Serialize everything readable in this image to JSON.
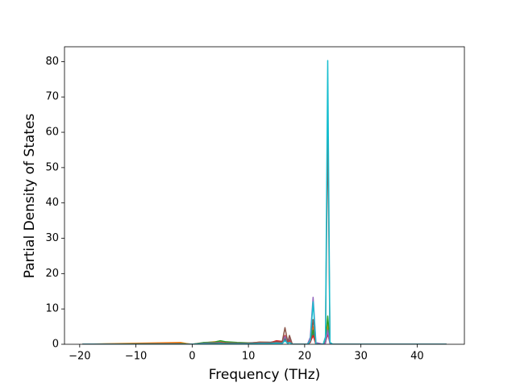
{
  "chart_data": {
    "type": "line",
    "x_label": "Frequency (THz)",
    "y_label": "Partial Density of States",
    "x": [
      -19.5,
      -2,
      -1,
      0,
      2,
      4,
      5,
      6,
      8,
      10,
      12,
      14,
      15,
      16,
      16.5,
      17,
      17.3,
      17.8,
      20.5,
      21,
      21.5,
      22,
      23.3,
      23.7,
      24.1,
      24.5,
      25,
      30,
      45.2
    ],
    "series": [
      {
        "color": "#1f77b4",
        "values": [
          0,
          0.3,
          0.1,
          0,
          0.3,
          0.5,
          0.6,
          0.4,
          0.3,
          0.4,
          0.5,
          0.6,
          0.8,
          0.5,
          1.5,
          0.4,
          0.8,
          0,
          0,
          0.5,
          3,
          0,
          0,
          0.5,
          5,
          0.3,
          0,
          0,
          0
        ]
      },
      {
        "color": "#ff7f0e",
        "values": [
          0,
          0.5,
          0.2,
          0,
          0.4,
          0.7,
          0.9,
          0.5,
          0.4,
          0.3,
          0.6,
          0.5,
          0.7,
          0.6,
          2,
          0.5,
          1,
          0,
          0,
          1,
          5,
          0,
          0,
          1,
          6,
          0.5,
          0,
          0,
          0
        ]
      },
      {
        "color": "#2ca02c",
        "values": [
          0,
          0.2,
          0.1,
          0,
          0.5,
          0.6,
          1,
          0.7,
          0.5,
          0.4,
          0.4,
          0.5,
          0.6,
          0.5,
          1.8,
          0.6,
          1.5,
          0,
          0,
          0.8,
          4,
          0,
          0,
          0.6,
          8,
          0.4,
          0,
          0,
          0
        ]
      },
      {
        "color": "#d62728",
        "values": [
          0,
          0.1,
          0,
          0,
          0.2,
          0.3,
          0.4,
          0.3,
          0.2,
          0.3,
          0.4,
          0.5,
          1,
          0.8,
          2.5,
          0.5,
          1.2,
          0,
          0,
          0.6,
          2.5,
          0,
          0,
          0.4,
          3,
          0.2,
          0,
          0,
          0
        ]
      },
      {
        "color": "#9467bd",
        "values": [
          0,
          0.1,
          0,
          0,
          0.3,
          0.4,
          0.5,
          0.3,
          0.3,
          0.2,
          0.5,
          0.4,
          0.6,
          0.4,
          2.2,
          0.5,
          2,
          0,
          0,
          2,
          13.3,
          0.5,
          0,
          0.3,
          4,
          0.2,
          0,
          0,
          0
        ]
      },
      {
        "color": "#8c564b",
        "values": [
          0,
          0.1,
          0,
          0,
          0.2,
          0.3,
          0.5,
          0.4,
          0.3,
          0.3,
          0.6,
          0.5,
          0.7,
          0.6,
          4.7,
          0.6,
          2.5,
          0,
          0,
          1,
          7,
          0,
          0,
          2,
          61.5,
          0.5,
          0,
          0,
          0
        ]
      },
      {
        "color": "#17becf",
        "values": [
          0,
          0,
          0,
          0,
          0.1,
          0.1,
          0.2,
          0.1,
          0.1,
          0.1,
          0.2,
          0.2,
          0.3,
          0.2,
          1,
          0.2,
          0.5,
          0,
          0,
          1,
          12,
          0,
          0,
          2,
          80.3,
          0.5,
          0,
          0,
          0
        ]
      }
    ],
    "xlim": [
      -22.7,
      48.4
    ],
    "ylim": [
      0,
      84.2
    ],
    "xticks": [
      {
        "value": -20,
        "label": "−20"
      },
      {
        "value": -10,
        "label": "−10"
      },
      0,
      10,
      20,
      30,
      40
    ],
    "yticks": [
      0,
      10,
      20,
      30,
      40,
      50,
      60,
      70,
      80
    ]
  }
}
